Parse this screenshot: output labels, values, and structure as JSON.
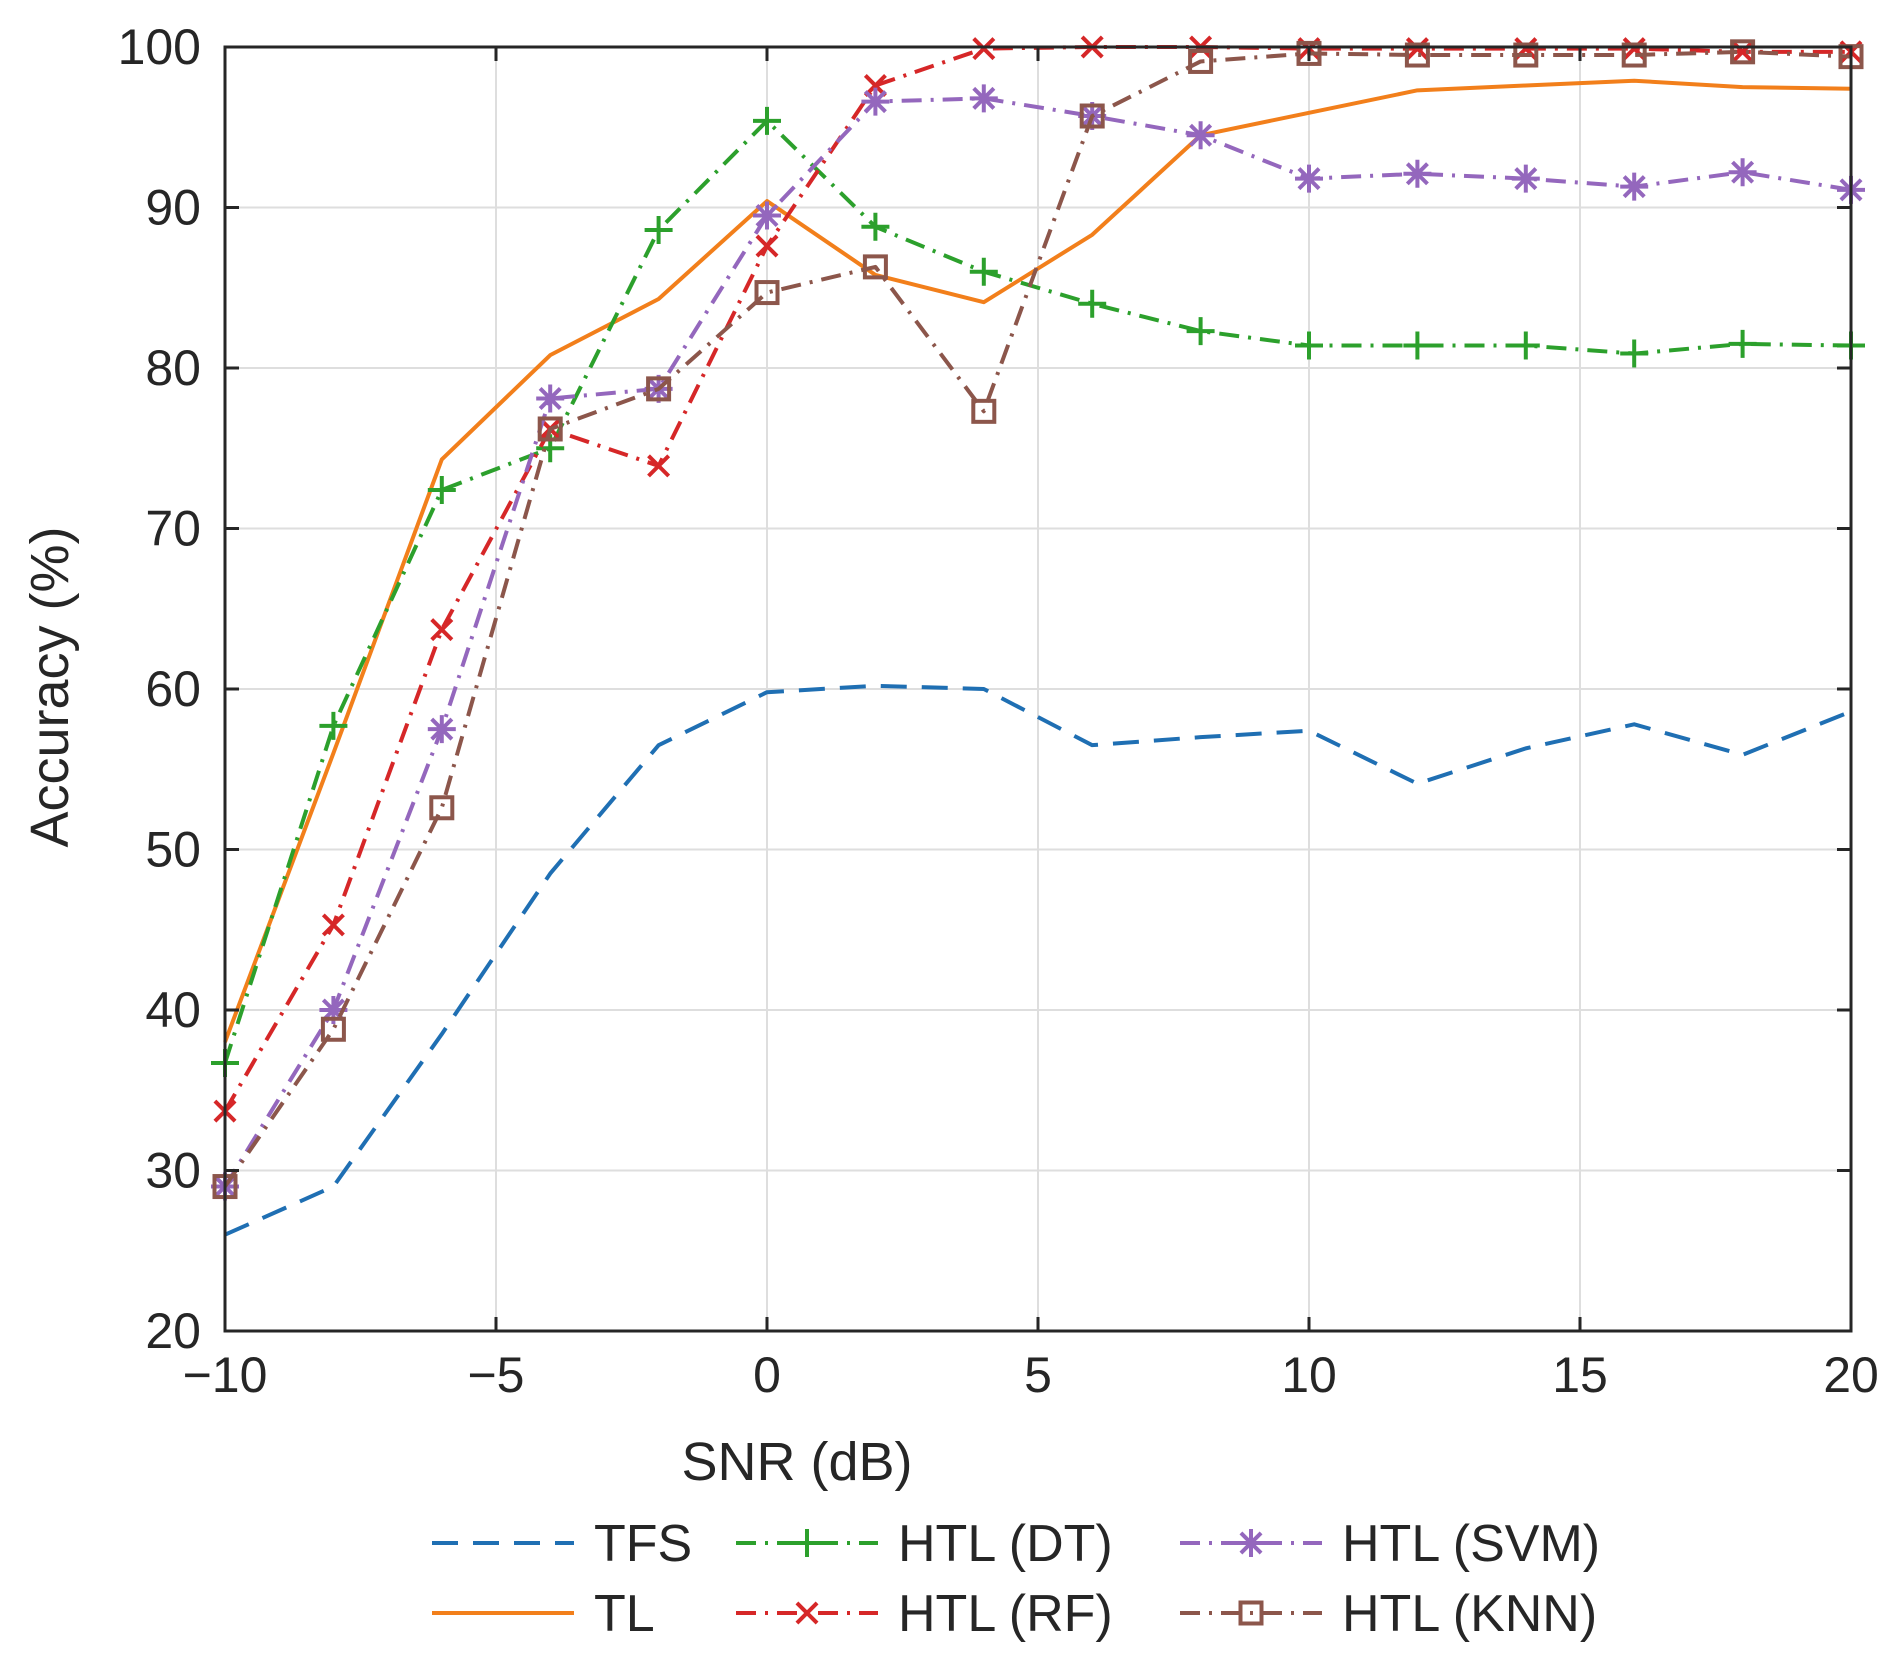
{
  "chart_data": {
    "type": "line",
    "title": "",
    "xlabel": "SNR (dB)",
    "ylabel": "Accuracy (%)",
    "xlim": [
      -10,
      20
    ],
    "ylim": [
      20,
      100
    ],
    "xticks": [
      -10,
      -5,
      0,
      5,
      10,
      15,
      20
    ],
    "xtick_labels": [
      "−10",
      "−5",
      "0",
      "5",
      "10",
      "15",
      "20"
    ],
    "yticks": [
      20,
      30,
      40,
      50,
      60,
      70,
      80,
      90,
      100
    ],
    "ytick_labels": [
      "20",
      "30",
      "40",
      "50",
      "60",
      "70",
      "80",
      "90",
      "100"
    ],
    "grid": true,
    "legend_position": "bottom",
    "x": [
      -10,
      -8,
      -6,
      -4,
      -2,
      0,
      2,
      4,
      6,
      8,
      10,
      12,
      14,
      16,
      18,
      20
    ],
    "series": [
      {
        "name": "TFS",
        "color": "#1f6fb3",
        "dash": "dashed",
        "marker": "none",
        "values": [
          26.0,
          29.0,
          38.5,
          48.5,
          56.5,
          59.8,
          60.2,
          60.0,
          56.5,
          57.0,
          57.4,
          54.1,
          56.3,
          57.8,
          55.9,
          58.6
        ]
      },
      {
        "name": "TL",
        "color": "#f27f1b",
        "dash": "solid",
        "marker": "none",
        "values": [
          38.0,
          56.0,
          74.3,
          80.8,
          84.3,
          90.4,
          85.8,
          84.1,
          88.3,
          94.5,
          95.9,
          97.3,
          97.6,
          97.9,
          97.5,
          97.4
        ]
      },
      {
        "name": "HTL (DT)",
        "color": "#2ca02c",
        "dash": "dashdot",
        "marker": "plus",
        "values": [
          36.7,
          57.7,
          72.4,
          75.0,
          88.6,
          95.4,
          88.8,
          86.0,
          84.0,
          82.3,
          81.4,
          81.4,
          81.4,
          80.9,
          81.5,
          81.4
        ]
      },
      {
        "name": "HTL (RF)",
        "color": "#d62728",
        "dash": "dashdot",
        "marker": "x",
        "values": [
          33.7,
          45.3,
          63.7,
          76.2,
          73.9,
          87.6,
          97.6,
          99.9,
          100.0,
          100.0,
          99.9,
          99.9,
          99.9,
          99.9,
          99.7,
          99.7
        ]
      },
      {
        "name": "HTL (SVM)",
        "color": "#9467bd",
        "dash": "dashdot",
        "marker": "star",
        "values": [
          29.0,
          40.0,
          57.5,
          78.1,
          78.7,
          89.5,
          96.6,
          96.8,
          95.7,
          94.5,
          91.8,
          92.1,
          91.8,
          91.3,
          92.2,
          91.1
        ]
      },
      {
        "name": "HTL (KNN)",
        "color": "#8c564b",
        "dash": "dashdot",
        "marker": "square",
        "values": [
          29.0,
          38.8,
          52.6,
          76.2,
          78.7,
          84.7,
          86.3,
          77.3,
          95.7,
          99.1,
          99.6,
          99.5,
          99.5,
          99.5,
          99.7,
          99.4
        ]
      }
    ]
  }
}
